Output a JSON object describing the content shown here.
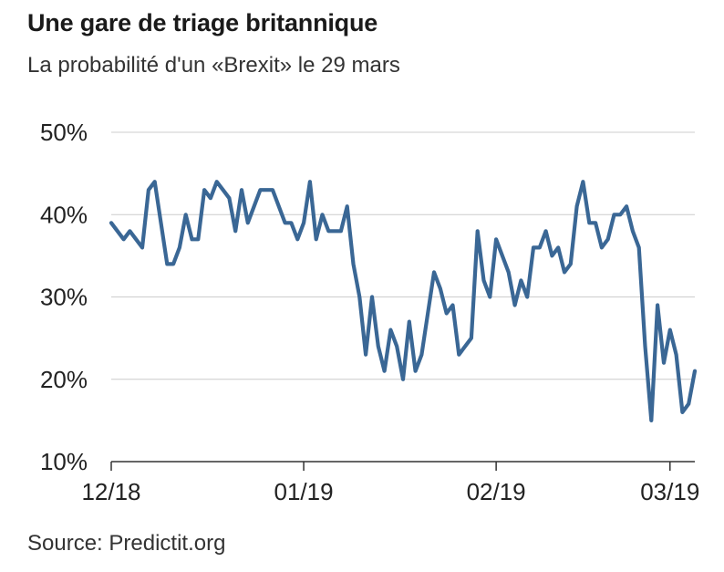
{
  "header": {
    "title": "Une gare de triage britannique",
    "subtitle": "La probabilité d'un «Brexit» le 29 mars"
  },
  "footer": {
    "source": "Source: Predictit.org"
  },
  "colors": {
    "line": "#3a6795",
    "grid": "#cccccc",
    "axis": "#333333"
  },
  "chart_data": {
    "type": "line",
    "title": "Une gare de triage britannique",
    "subtitle": "La probabilité d'un «Brexit» le 29 mars",
    "xlabel": "",
    "ylabel": "",
    "ylim": [
      10,
      50
    ],
    "y_ticks": [
      50,
      40,
      30,
      20,
      10
    ],
    "y_tick_labels": [
      "50%",
      "40%",
      "30%",
      "20%",
      "10%"
    ],
    "x_ticks": [
      "12/18",
      "01/19",
      "02/19",
      "03/19"
    ],
    "grid": true,
    "x_range": [
      "2018-12-01",
      "2019-03-05"
    ],
    "series": [
      {
        "x": [
          "2018-12-01",
          "2018-12-02",
          "2018-12-03",
          "2018-12-04",
          "2018-12-05",
          "2018-12-06",
          "2018-12-07",
          "2018-12-08",
          "2018-12-09",
          "2018-12-10",
          "2018-12-11",
          "2018-12-12",
          "2018-12-13",
          "2018-12-14",
          "2018-12-15",
          "2018-12-16",
          "2018-12-17",
          "2018-12-18",
          "2018-12-19",
          "2018-12-20",
          "2018-12-21",
          "2018-12-22",
          "2018-12-23",
          "2018-12-24",
          "2018-12-25",
          "2018-12-26",
          "2018-12-27",
          "2018-12-28",
          "2018-12-29",
          "2018-12-30",
          "2018-12-31",
          "2019-01-01",
          "2019-01-02",
          "2019-01-03",
          "2019-01-04",
          "2019-01-05",
          "2019-01-06",
          "2019-01-07",
          "2019-01-08",
          "2019-01-09",
          "2019-01-10",
          "2019-01-11",
          "2019-01-12",
          "2019-01-13",
          "2019-01-14",
          "2019-01-15",
          "2019-01-16",
          "2019-01-17",
          "2019-01-18",
          "2019-01-19",
          "2019-01-20",
          "2019-01-21",
          "2019-01-22",
          "2019-01-23",
          "2019-01-24",
          "2019-01-25",
          "2019-01-26",
          "2019-01-27",
          "2019-01-28",
          "2019-01-29",
          "2019-01-30",
          "2019-01-31",
          "2019-02-01",
          "2019-02-02",
          "2019-02-03",
          "2019-02-04",
          "2019-02-05",
          "2019-02-06",
          "2019-02-07",
          "2019-02-08",
          "2019-02-09",
          "2019-02-10",
          "2019-02-11",
          "2019-02-12",
          "2019-02-13",
          "2019-02-14",
          "2019-02-15",
          "2019-02-16",
          "2019-02-17",
          "2019-02-18",
          "2019-02-19",
          "2019-02-20",
          "2019-02-21",
          "2019-02-22",
          "2019-02-23",
          "2019-02-24",
          "2019-02-25",
          "2019-02-26",
          "2019-02-27",
          "2019-02-28",
          "2019-03-01",
          "2019-03-02",
          "2019-03-03",
          "2019-03-04",
          "2019-03-05"
        ],
        "values": [
          39,
          38,
          37,
          38,
          37,
          36,
          43,
          44,
          39,
          34,
          34,
          36,
          40,
          37,
          37,
          43,
          42,
          44,
          43,
          42,
          38,
          43,
          39,
          41,
          43,
          43,
          43,
          41,
          39,
          39,
          37,
          39,
          44,
          37,
          40,
          38,
          38,
          38,
          41,
          34,
          30,
          23,
          30,
          24,
          21,
          26,
          24,
          20,
          27,
          21,
          23,
          28,
          33,
          31,
          28,
          29,
          23,
          24,
          25,
          38,
          32,
          30,
          37,
          35,
          33,
          29,
          32,
          30,
          36,
          36,
          38,
          35,
          36,
          33,
          34,
          41,
          44,
          39,
          39,
          36,
          37,
          40,
          40,
          41,
          38,
          36,
          24,
          15,
          29,
          22,
          26,
          23,
          16,
          17,
          21
        ]
      }
    ]
  }
}
